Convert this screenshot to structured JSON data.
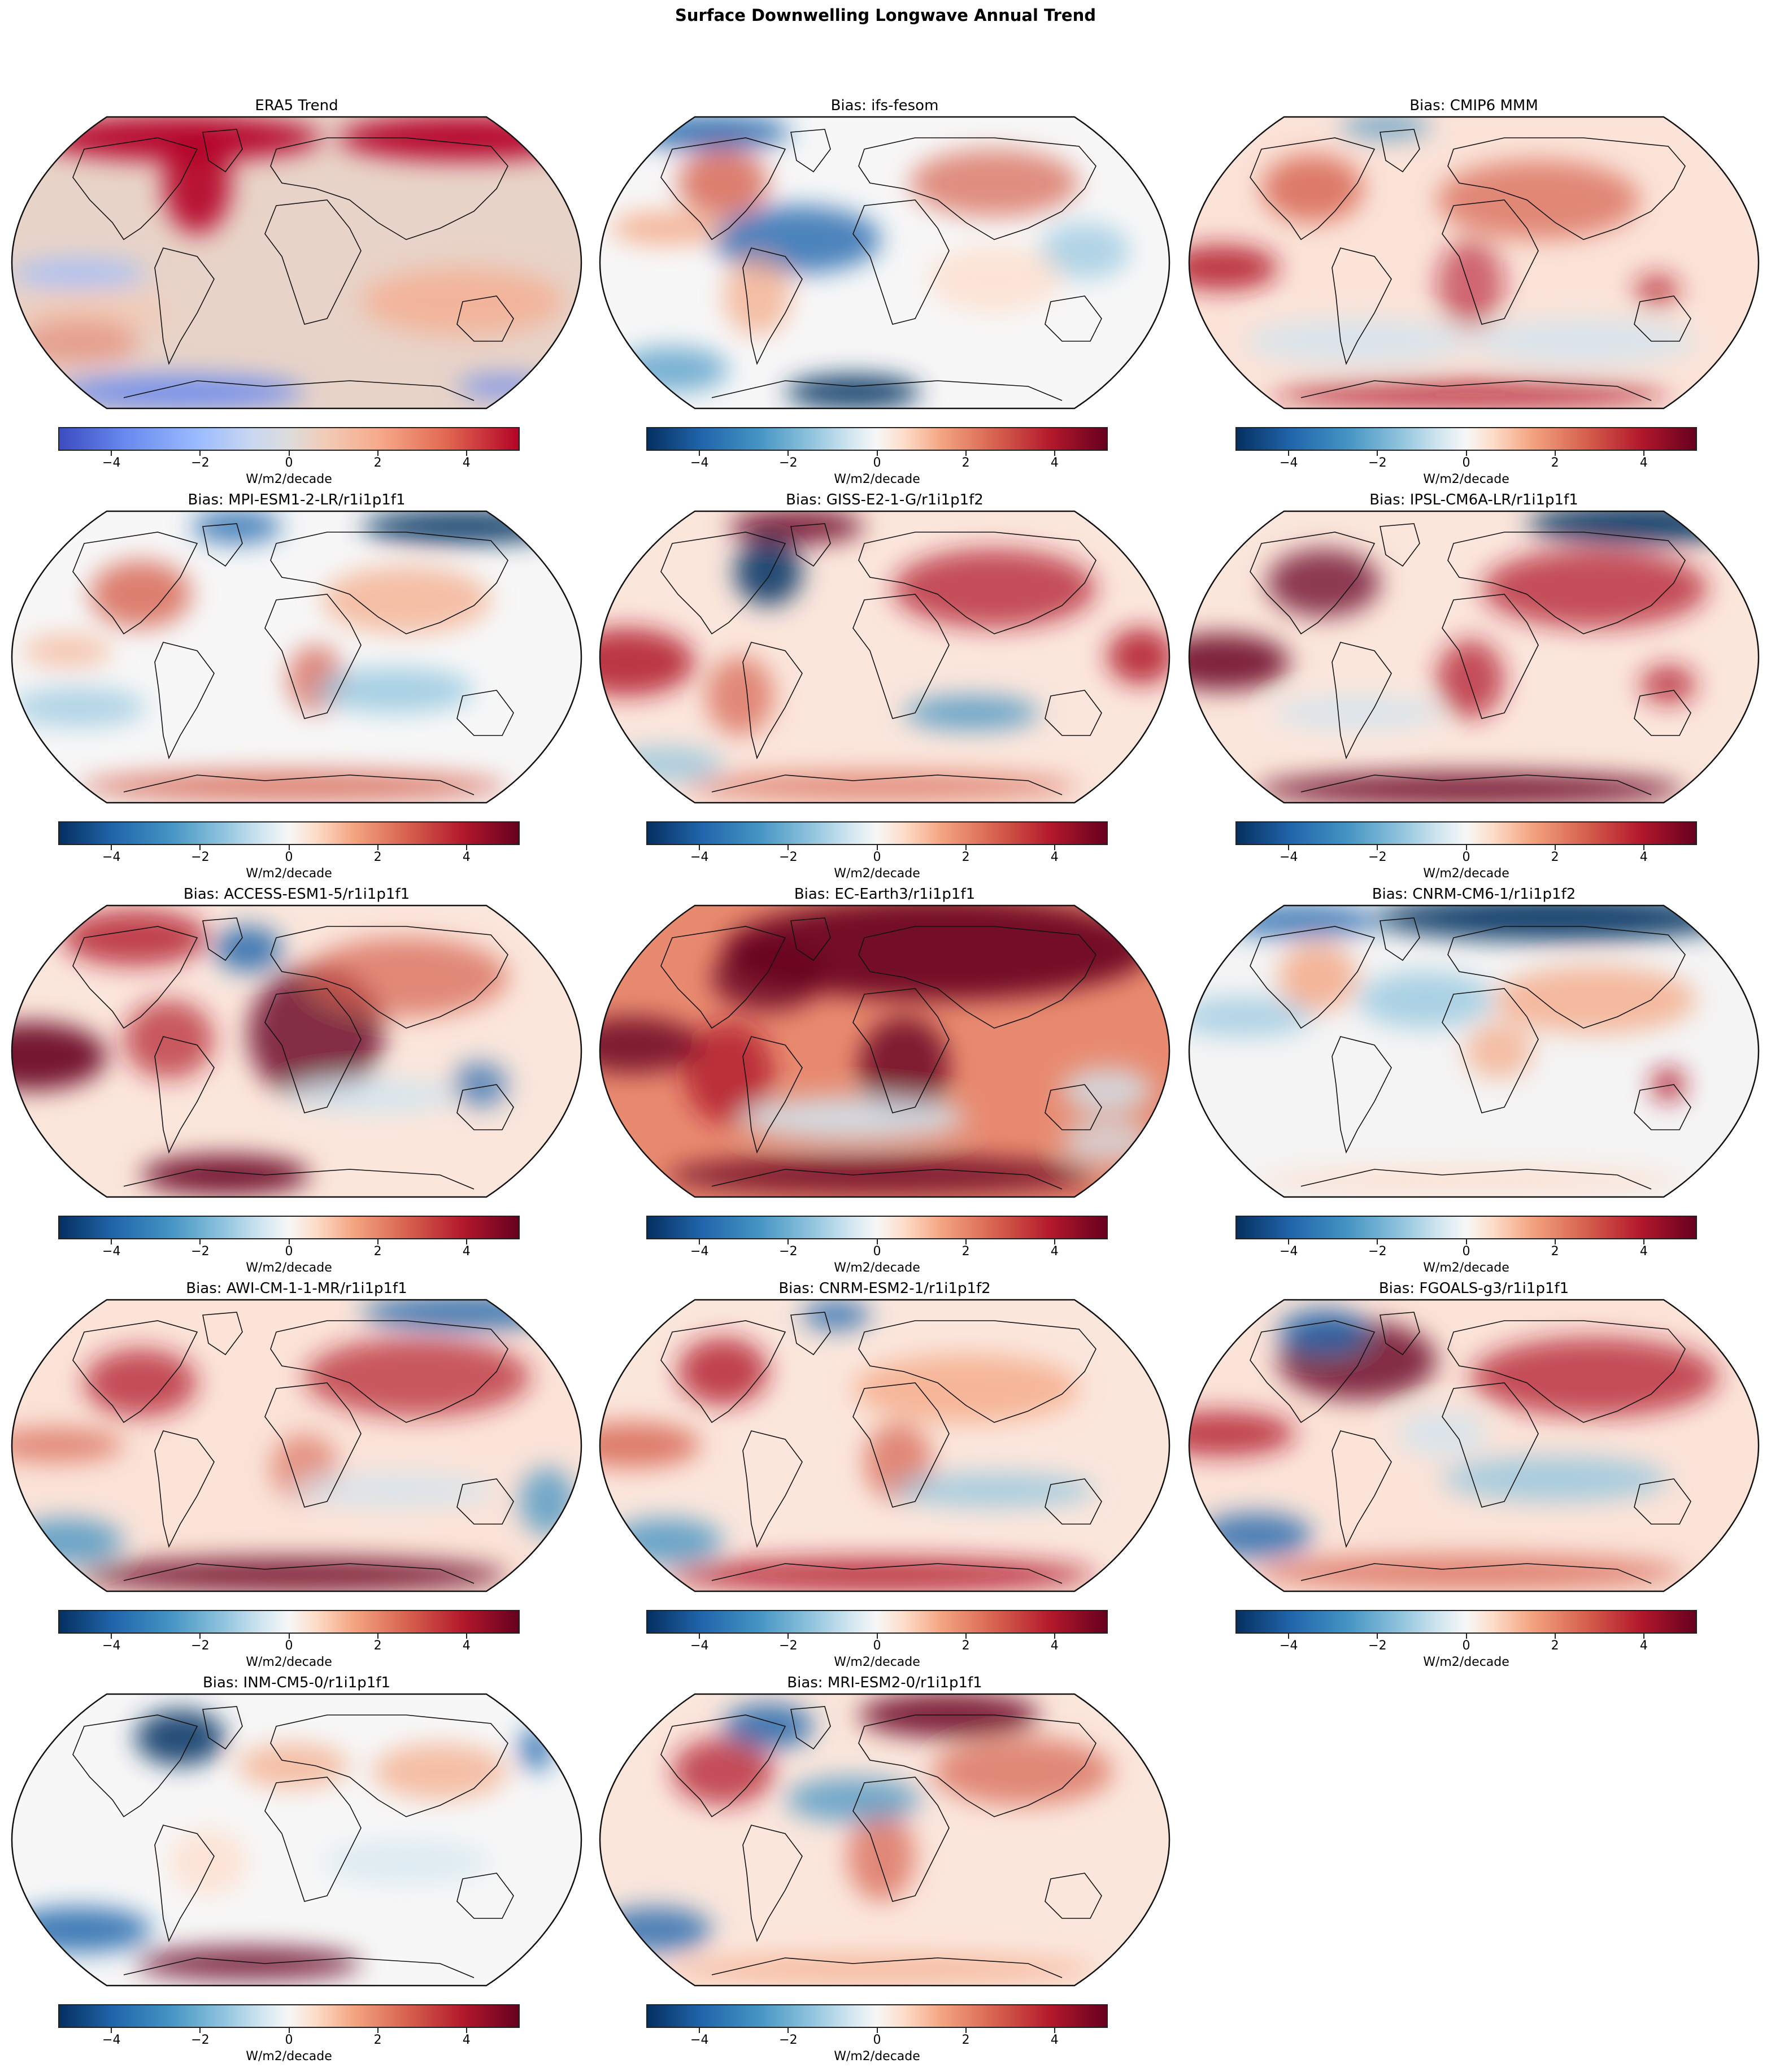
{
  "figure": {
    "title": "Surface Downwelling Longwave Annual Trend"
  },
  "chart_data": {
    "type": "heatmap",
    "title": "Surface Downwelling Longwave Annual Trend",
    "layout": {
      "rows": 5,
      "cols": 3,
      "projection": "Robinson (global map)"
    },
    "panels": [
      {
        "title": "ERA5 Trend",
        "colormap": "coolwarm",
        "colorbar_label": "W/m2/decade",
        "vmin": -5,
        "vmax": 5,
        "ticks": [
          "−4",
          "−2",
          "0",
          "2",
          "4"
        ],
        "summary": "Mostly weak positive trend (~+1 W/m2/decade) over oceans; strong positive (>+4) over Arctic/Greenland/Siberia; negative (~-2) in Southern Ocean near Antarctica and east Pacific bands"
      },
      {
        "title": "Bias: ifs-fesom",
        "colormap": "RdBu_r",
        "colorbar_label": "W/m2/decade",
        "vmin": -5,
        "vmax": 5,
        "ticks": [
          "−4",
          "−2",
          "0",
          "2",
          "4"
        ],
        "summary": "Mixed; negative over North Atlantic and Southern Ocean, positive over Americas and Eurasia"
      },
      {
        "title": "Bias: CMIP6 MMM",
        "colormap": "RdBu_r",
        "colorbar_label": "W/m2/decade",
        "vmin": -5,
        "vmax": 5,
        "ticks": [
          "−4",
          "−2",
          "0",
          "2",
          "4"
        ],
        "summary": "Mostly positive over land and tropical Pacific; weak negative in southern oceans"
      },
      {
        "title": "Bias: MPI-ESM1-2-LR/r1i1p1f1",
        "colormap": "RdBu_r",
        "colorbar_label": "W/m2/decade",
        "vmin": -5,
        "vmax": 5,
        "ticks": [
          "−4",
          "−2",
          "0",
          "2",
          "4"
        ],
        "summary": "Negative over Arctic; positive over North America, Africa, Asia"
      },
      {
        "title": "Bias: GISS-E2-1-G/r1i1p1f2",
        "colormap": "RdBu_r",
        "colorbar_label": "W/m2/decade",
        "vmin": -5,
        "vmax": 5,
        "ticks": [
          "−4",
          "−2",
          "0",
          "2",
          "4"
        ],
        "summary": "Strong positive over tropical Pacific and Eurasia; negative Labrador Sea"
      },
      {
        "title": "Bias: IPSL-CM6A-LR/r1i1p1f1",
        "colormap": "RdBu_r",
        "colorbar_label": "W/m2/decade",
        "vmin": -5,
        "vmax": 5,
        "ticks": [
          "−4",
          "−2",
          "0",
          "2",
          "4"
        ],
        "summary": "Strong positive over land and Southern Ocean; negative over Arctic"
      },
      {
        "title": "Bias: ACCESS-ESM1-5/r1i1p1f1",
        "colormap": "RdBu_r",
        "colorbar_label": "W/m2/decade",
        "vmin": -5,
        "vmax": 5,
        "ticks": [
          "−4",
          "−2",
          "0",
          "2",
          "4"
        ],
        "summary": "Strong positive over Africa, tropical Pacific and Southern Ocean"
      },
      {
        "title": "Bias: EC-Earth3/r1i1p1f1",
        "colormap": "RdBu_r",
        "colorbar_label": "W/m2/decade",
        "vmin": -5,
        "vmax": 5,
        "ticks": [
          "−4",
          "−2",
          "0",
          "2",
          "4"
        ],
        "summary": "Very strong positive almost everywhere, especially Arctic/Eurasia"
      },
      {
        "title": "Bias: CNRM-CM6-1/r1i1p1f2",
        "colormap": "RdBu_r",
        "colorbar_label": "W/m2/decade",
        "vmin": -5,
        "vmax": 5,
        "ticks": [
          "−4",
          "−2",
          "0",
          "2",
          "4"
        ],
        "summary": "Strong negative over Arctic; weak mixed elsewhere"
      },
      {
        "title": "Bias: AWI-CM-1-1-MR/r1i1p1f1",
        "colormap": "RdBu_r",
        "colorbar_label": "W/m2/decade",
        "vmin": -5,
        "vmax": 5,
        "ticks": [
          "−4",
          "−2",
          "0",
          "2",
          "4"
        ],
        "summary": "Positive over land and Southern Ocean; negative Arctic"
      },
      {
        "title": "Bias: CNRM-ESM2-1/r1i1p1f2",
        "colormap": "RdBu_r",
        "colorbar_label": "W/m2/decade",
        "vmin": -5,
        "vmax": 5,
        "ticks": [
          "−4",
          "−2",
          "0",
          "2",
          "4"
        ],
        "summary": "Moderate positive over land; negative over Arctic sea"
      },
      {
        "title": "Bias: FGOALS-g3/r1i1p1f1",
        "colormap": "RdBu_r",
        "colorbar_label": "W/m2/decade",
        "vmin": -5,
        "vmax": 5,
        "ticks": [
          "−4",
          "−2",
          "0",
          "2",
          "4"
        ],
        "summary": "Strong positive over North America/North Atlantic and Eurasia"
      },
      {
        "title": "Bias: INM-CM5-0/r1i1p1f1",
        "colormap": "RdBu_r",
        "colorbar_label": "W/m2/decade",
        "vmin": -5,
        "vmax": 5,
        "ticks": [
          "−4",
          "−2",
          "0",
          "2",
          "4"
        ],
        "summary": "Mixed; negative Labrador/North Atlantic; positive South Atlantic"
      },
      {
        "title": "Bias: MRI-ESM2-0/r1i1p1f1",
        "colormap": "RdBu_r",
        "colorbar_label": "W/m2/decade",
        "vmin": -5,
        "vmax": 5,
        "ticks": [
          "−4",
          "−2",
          "0",
          "2",
          "4"
        ],
        "summary": "Positive over land and Arctic Siberia; negative bands in oceans"
      }
    ]
  },
  "panels": [
    {
      "title": "ERA5 Trend",
      "cbar": "W/m2/decade",
      "t0": "−4",
      "t1": "−2",
      "t2": "0",
      "t3": "2",
      "t4": "4"
    },
    {
      "title": "Bias: ifs-fesom",
      "cbar": "W/m2/decade",
      "t0": "−4",
      "t1": "−2",
      "t2": "0",
      "t3": "2",
      "t4": "4"
    },
    {
      "title": "Bias: CMIP6 MMM",
      "cbar": "W/m2/decade",
      "t0": "−4",
      "t1": "−2",
      "t2": "0",
      "t3": "2",
      "t4": "4"
    },
    {
      "title": "Bias: MPI-ESM1-2-LR/r1i1p1f1",
      "cbar": "W/m2/decade",
      "t0": "−4",
      "t1": "−2",
      "t2": "0",
      "t3": "2",
      "t4": "4"
    },
    {
      "title": "Bias: GISS-E2-1-G/r1i1p1f2",
      "cbar": "W/m2/decade",
      "t0": "−4",
      "t1": "−2",
      "t2": "0",
      "t3": "2",
      "t4": "4"
    },
    {
      "title": "Bias: IPSL-CM6A-LR/r1i1p1f1",
      "cbar": "W/m2/decade",
      "t0": "−4",
      "t1": "−2",
      "t2": "0",
      "t3": "2",
      "t4": "4"
    },
    {
      "title": "Bias: ACCESS-ESM1-5/r1i1p1f1",
      "cbar": "W/m2/decade",
      "t0": "−4",
      "t1": "−2",
      "t2": "0",
      "t3": "2",
      "t4": "4"
    },
    {
      "title": "Bias: EC-Earth3/r1i1p1f1",
      "cbar": "W/m2/decade",
      "t0": "−4",
      "t1": "−2",
      "t2": "0",
      "t3": "2",
      "t4": "4"
    },
    {
      "title": "Bias: CNRM-CM6-1/r1i1p1f2",
      "cbar": "W/m2/decade",
      "t0": "−4",
      "t1": "−2",
      "t2": "0",
      "t3": "2",
      "t4": "4"
    },
    {
      "title": "Bias: AWI-CM-1-1-MR/r1i1p1f1",
      "cbar": "W/m2/decade",
      "t0": "−4",
      "t1": "−2",
      "t2": "0",
      "t3": "2",
      "t4": "4"
    },
    {
      "title": "Bias: CNRM-ESM2-1/r1i1p1f2",
      "cbar": "W/m2/decade",
      "t0": "−4",
      "t1": "−2",
      "t2": "0",
      "t3": "2",
      "t4": "4"
    },
    {
      "title": "Bias: FGOALS-g3/r1i1p1f1",
      "cbar": "W/m2/decade",
      "t0": "−4",
      "t1": "−2",
      "t2": "0",
      "t3": "2",
      "t4": "4"
    },
    {
      "title": "Bias: INM-CM5-0/r1i1p1f1",
      "cbar": "W/m2/decade",
      "t0": "−4",
      "t1": "−2",
      "t2": "0",
      "t3": "2",
      "t4": "4"
    },
    {
      "title": "Bias: MRI-ESM2-0/r1i1p1f1",
      "cbar": "W/m2/decade",
      "t0": "−4",
      "t1": "−2",
      "t2": "0",
      "t3": "2",
      "t4": "4"
    }
  ],
  "colors": {
    "rdbu_neg": "#053061",
    "rdbu_pos": "#67001f",
    "coolwarm_neg": "#3b4cc0",
    "coolwarm_pos": "#b40426"
  }
}
